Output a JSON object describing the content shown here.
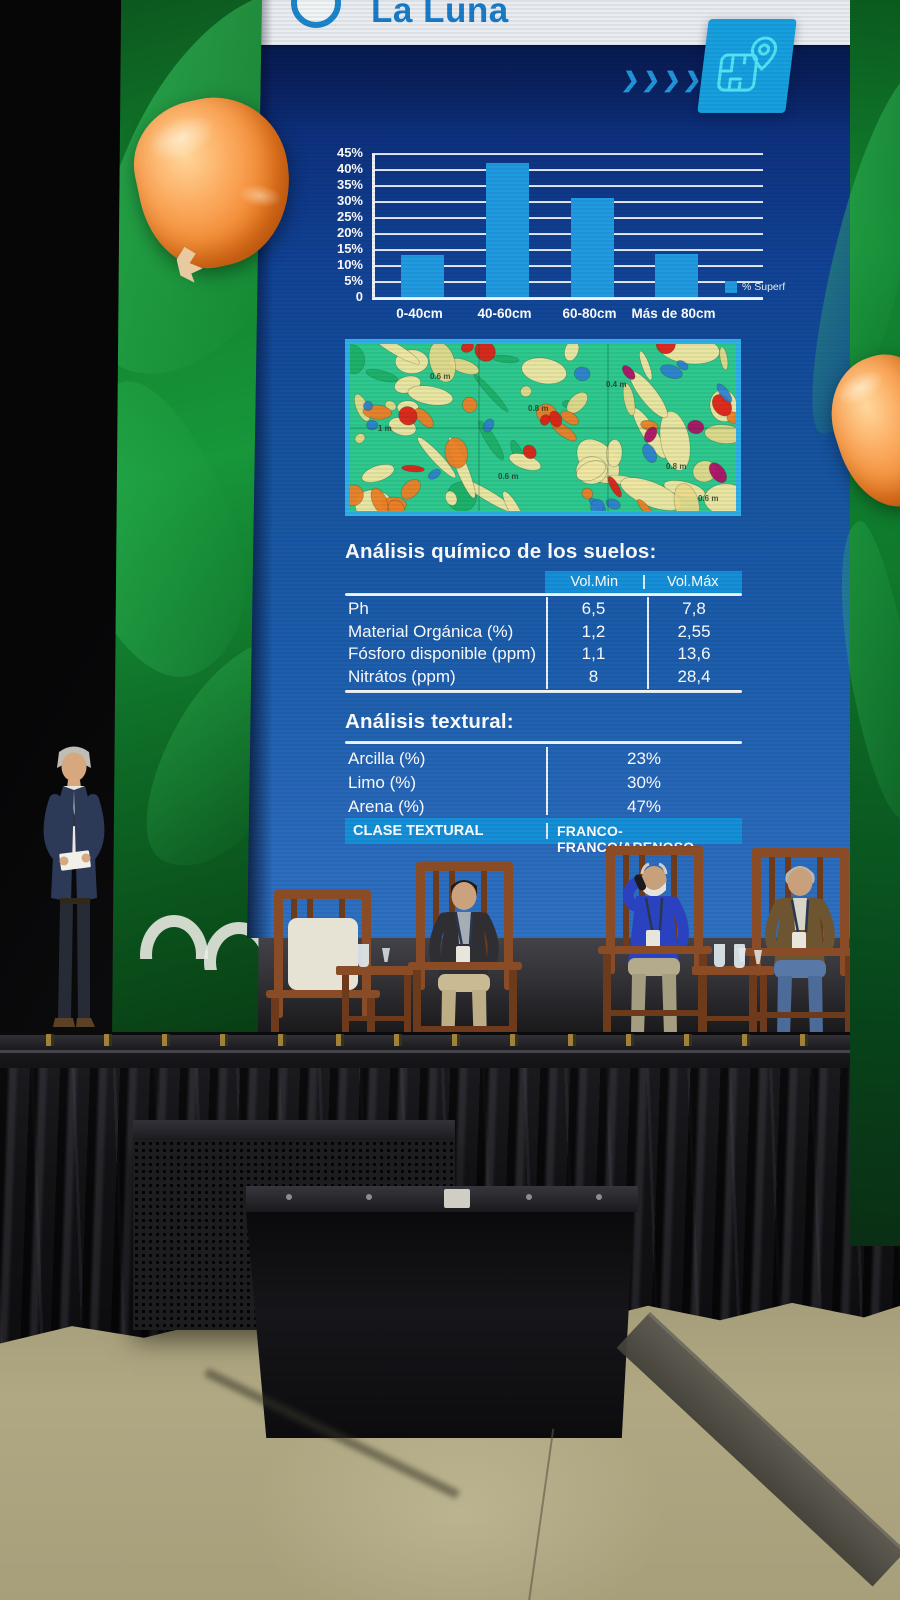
{
  "slide": {
    "title": "La Luna",
    "decor_chevrons": "❯❯❯❯❯",
    "chem_heading": "Análisis químico de los suelos:",
    "chem_columns": [
      "Vol.Min",
      "Vol.Máx"
    ],
    "chem_rows": [
      [
        "Ph",
        "6,5",
        "7,8"
      ],
      [
        "Material Orgánica (%)",
        "1,2",
        "2,55"
      ],
      [
        "Fósforo disponible (ppm)",
        "1,1",
        "13,6"
      ],
      [
        "Nitrátos (ppm)",
        "8",
        "28,4"
      ]
    ],
    "textural_heading": "Análisis textural:",
    "textural_rows": [
      [
        "Arcilla (%)",
        "23%"
      ],
      [
        "Limo (%)",
        "30%"
      ],
      [
        "Arena (%)",
        "47%"
      ]
    ],
    "textural_footer_label": "CLASE TEXTURAL",
    "textural_footer_value": "FRANCO-FRANCO/ARENOSO",
    "soil_map_depth_labels": [
      "1 m",
      "0.6 m",
      "0.8 m",
      "0.6 m",
      "0.4 m",
      "0.8 m",
      "0.6 m"
    ]
  },
  "chart_data": {
    "type": "bar",
    "title": "",
    "xlabel": "",
    "ylabel": "",
    "categories": [
      "0-40cm",
      "40-60cm",
      "60-80cm",
      "Más de 80cm"
    ],
    "values": [
      13,
      42,
      31,
      13.5
    ],
    "series_name": "% Superf",
    "ytick_labels": [
      "45%",
      "40%",
      "35%",
      "30%",
      "25%",
      "20%",
      "15%",
      "10%",
      "5%",
      "0"
    ],
    "ylim": [
      0,
      45
    ],
    "grid": true,
    "legend_position": "right-bottom",
    "bar_color": "#209ae0"
  },
  "colors": {
    "slide_accent_band": "#1590d8",
    "slide_title": "#1a7cc8",
    "bar": "#209ae0",
    "map_border": "#2fb0ea",
    "screen_green": "#12812e",
    "kernel_orange": "#f08227"
  }
}
